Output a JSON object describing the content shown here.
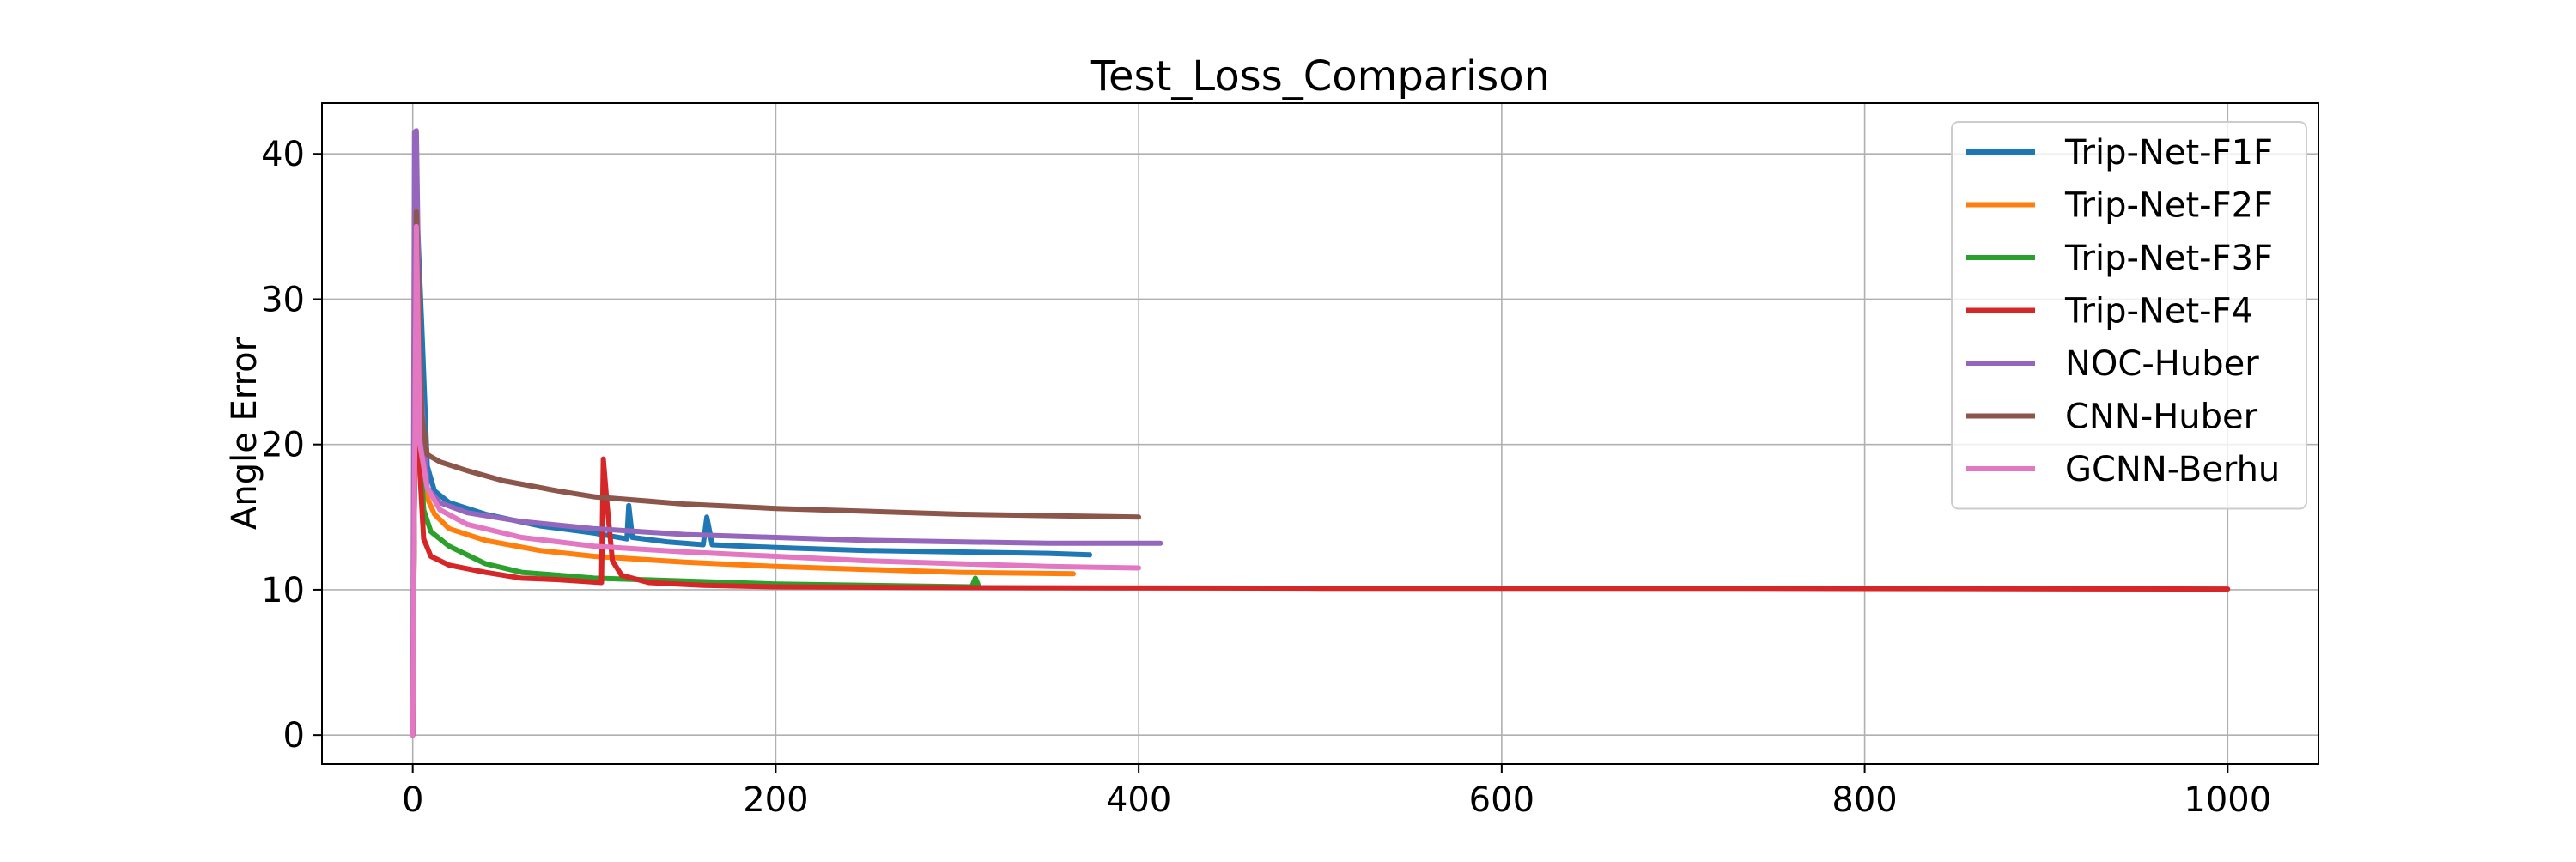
{
  "chart_data": {
    "type": "line",
    "title": "Test_Loss_Comparison",
    "xlabel": "",
    "ylabel": "Angle Error",
    "xlim": [
      -50,
      1050
    ],
    "ylim": [
      -2,
      43.5
    ],
    "xticks": [
      0,
      200,
      400,
      600,
      800,
      1000
    ],
    "yticks": [
      0,
      10,
      20,
      30,
      40
    ],
    "grid": true,
    "legend_position": "top-right",
    "series": [
      {
        "name": "Trip-Net-F1F",
        "color": "#1f77b4",
        "points": [
          [
            0,
            0
          ],
          [
            2,
            37
          ],
          [
            5,
            28
          ],
          [
            8,
            18.5
          ],
          [
            12,
            16.8
          ],
          [
            20,
            16
          ],
          [
            40,
            15.2
          ],
          [
            70,
            14.4
          ],
          [
            100,
            13.9
          ],
          [
            118,
            13.5
          ],
          [
            119,
            15.8
          ],
          [
            121,
            13.6
          ],
          [
            140,
            13.3
          ],
          [
            160,
            13.1
          ],
          [
            162,
            15
          ],
          [
            165,
            13.1
          ],
          [
            200,
            12.9
          ],
          [
            250,
            12.7
          ],
          [
            300,
            12.6
          ],
          [
            350,
            12.5
          ],
          [
            373,
            12.4
          ]
        ]
      },
      {
        "name": "Trip-Net-F2F",
        "color": "#ff7f0e",
        "points": [
          [
            0,
            0
          ],
          [
            2,
            35
          ],
          [
            5,
            20
          ],
          [
            8,
            16.3
          ],
          [
            12,
            15.2
          ],
          [
            20,
            14.2
          ],
          [
            40,
            13.4
          ],
          [
            70,
            12.7
          ],
          [
            100,
            12.3
          ],
          [
            150,
            11.9
          ],
          [
            200,
            11.6
          ],
          [
            250,
            11.4
          ],
          [
            300,
            11.2
          ],
          [
            364,
            11.1
          ]
        ]
      },
      {
        "name": "Trip-Net-F3F",
        "color": "#2ca02c",
        "points": [
          [
            0,
            0
          ],
          [
            2,
            36
          ],
          [
            4,
            20
          ],
          [
            6,
            15.5
          ],
          [
            10,
            14
          ],
          [
            20,
            13
          ],
          [
            40,
            11.8
          ],
          [
            60,
            11.2
          ],
          [
            100,
            10.8
          ],
          [
            150,
            10.6
          ],
          [
            200,
            10.4
          ],
          [
            250,
            10.3
          ],
          [
            308,
            10.2
          ],
          [
            310,
            10.8
          ],
          [
            312,
            10.2
          ]
        ]
      },
      {
        "name": "Trip-Net-F4",
        "color": "#d62728",
        "points": [
          [
            0,
            0
          ],
          [
            2,
            36
          ],
          [
            4,
            18
          ],
          [
            6,
            13.5
          ],
          [
            10,
            12.3
          ],
          [
            20,
            11.7
          ],
          [
            40,
            11.2
          ],
          [
            60,
            10.8
          ],
          [
            80,
            10.7
          ],
          [
            104,
            10.5
          ],
          [
            105,
            19
          ],
          [
            107,
            16
          ],
          [
            110,
            12
          ],
          [
            115,
            11
          ],
          [
            130,
            10.5
          ],
          [
            160,
            10.3
          ],
          [
            200,
            10.2
          ],
          [
            300,
            10.15
          ],
          [
            500,
            10.1
          ],
          [
            700,
            10.1
          ],
          [
            1000,
            10.05
          ]
        ]
      },
      {
        "name": "NOC-Huber",
        "color": "#9467bd",
        "points": [
          [
            0,
            0
          ],
          [
            1,
            41.5
          ],
          [
            2,
            41.6
          ],
          [
            4,
            25
          ],
          [
            8,
            17
          ],
          [
            15,
            16
          ],
          [
            30,
            15.3
          ],
          [
            60,
            14.7
          ],
          [
            100,
            14.2
          ],
          [
            150,
            13.8
          ],
          [
            200,
            13.6
          ],
          [
            250,
            13.4
          ],
          [
            300,
            13.3
          ],
          [
            350,
            13.2
          ],
          [
            412,
            13.2
          ]
        ]
      },
      {
        "name": "CNN-Huber",
        "color": "#8c564b",
        "points": [
          [
            0,
            0
          ],
          [
            2,
            36
          ],
          [
            5,
            22
          ],
          [
            8,
            19.3
          ],
          [
            15,
            18.8
          ],
          [
            30,
            18.2
          ],
          [
            50,
            17.5
          ],
          [
            80,
            16.8
          ],
          [
            100,
            16.4
          ],
          [
            150,
            15.9
          ],
          [
            200,
            15.6
          ],
          [
            250,
            15.4
          ],
          [
            300,
            15.2
          ],
          [
            350,
            15.1
          ],
          [
            400,
            15
          ]
        ]
      },
      {
        "name": "GCNN-Berhu",
        "color": "#e377c2",
        "points": [
          [
            0,
            0
          ],
          [
            2,
            35
          ],
          [
            4,
            20
          ],
          [
            8,
            17
          ],
          [
            15,
            15.5
          ],
          [
            30,
            14.5
          ],
          [
            60,
            13.6
          ],
          [
            100,
            13
          ],
          [
            150,
            12.6
          ],
          [
            200,
            12.3
          ],
          [
            250,
            12
          ],
          [
            300,
            11.8
          ],
          [
            350,
            11.6
          ],
          [
            400,
            11.5
          ]
        ]
      }
    ]
  }
}
